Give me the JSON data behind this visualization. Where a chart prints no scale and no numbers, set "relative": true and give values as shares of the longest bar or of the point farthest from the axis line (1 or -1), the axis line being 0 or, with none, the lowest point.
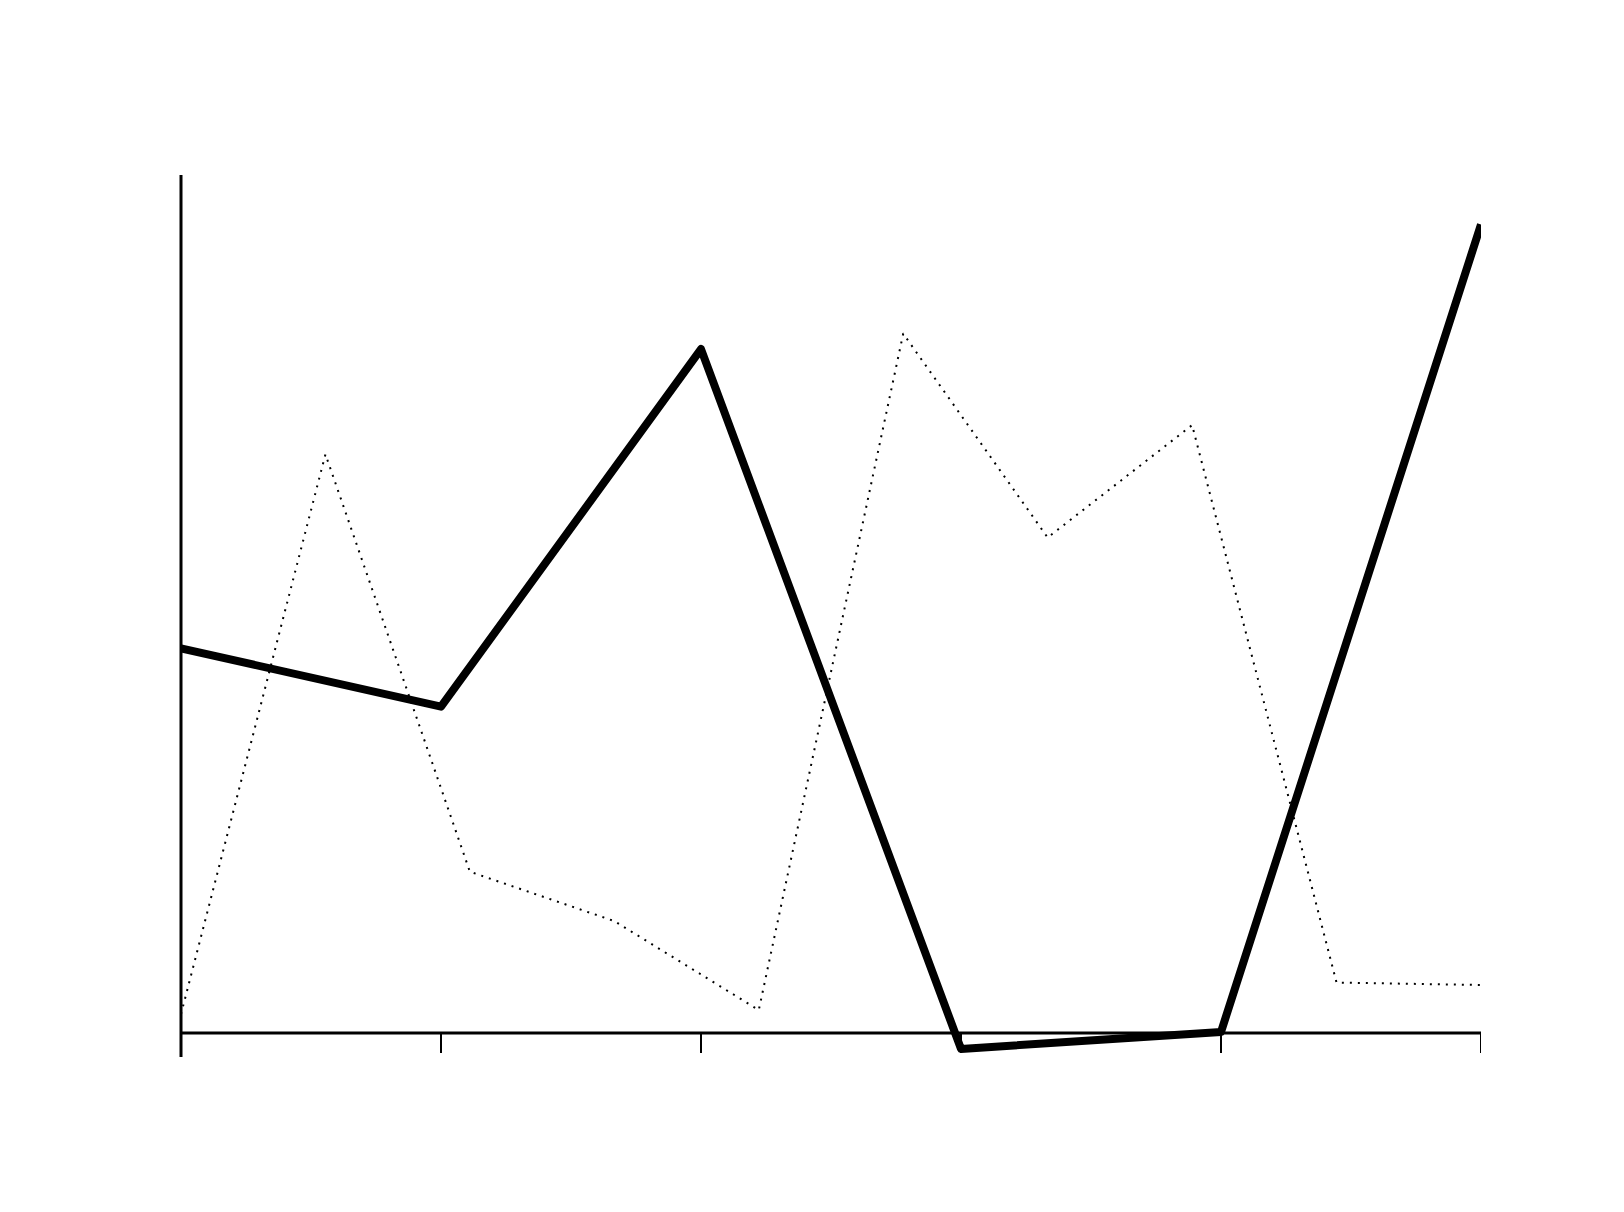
{
  "chart_data": {
    "type": "line",
    "relative": true,
    "categories": [
      null,
      null,
      null,
      null,
      null,
      null,
      null,
      null,
      null,
      null,
      null,
      null,
      null,
      null,
      null,
      null,
      null,
      null,
      null,
      null,
      null,
      null,
      null,
      null,
      null,
      null,
      null,
      null,
      null,
      null,
      null,
      null,
      null,
      null,
      null,
      null,
      null,
      null,
      null,
      null,
      null,
      null,
      null,
      null,
      null,
      null
    ],
    "series": [
      {
        "color": "#000000",
        "line_style": "solid",
        "values": [
          0.476,
          null,
          null,
          null,
          null,
          null,
          null,
          null,
          null,
          0.404,
          null,
          null,
          null,
          null,
          null,
          null,
          null,
          null,
          0.846,
          null,
          null,
          null,
          null,
          null,
          null,
          null,
          null,
          -0.019,
          null,
          null,
          null,
          null,
          null,
          null,
          null,
          null,
          0.002,
          null,
          null,
          null,
          null,
          null,
          null,
          null,
          null,
          1.0
        ]
      },
      {
        "color": "#000000",
        "line_style": "dotted",
        "values": [
          0.024,
          null,
          null,
          null,
          null,
          0.716,
          null,
          null,
          null,
          null,
          0.2,
          null,
          null,
          null,
          null,
          0.139,
          null,
          null,
          null,
          null,
          0.029,
          null,
          null,
          null,
          null,
          0.865,
          null,
          null,
          null,
          null,
          0.613,
          null,
          null,
          null,
          null,
          0.752,
          null,
          null,
          null,
          null,
          0.063,
          null,
          null,
          null,
          null,
          0.06
        ]
      }
    ]
  }
}
